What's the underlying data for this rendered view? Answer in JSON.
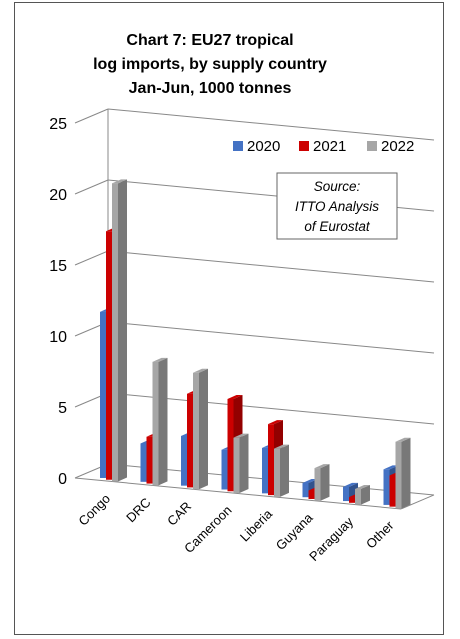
{
  "chart_data": {
    "type": "bar",
    "title_lines": [
      "Chart 7: EU27 tropical",
      "log imports, by supply country",
      "Jan-Jun, 1000 tonnes"
    ],
    "categories": [
      "Congo",
      "DRC",
      "CAR",
      "Cameroon",
      "Liberia",
      "Guyana",
      "Paraguay",
      "Other"
    ],
    "series": [
      {
        "name": "2020",
        "values": [
          11.7,
          2.7,
          3.5,
          2.8,
          3.2,
          1.0,
          1.0,
          2.5
        ]
      },
      {
        "name": "2021",
        "values": [
          17.5,
          3.3,
          6.6,
          6.5,
          5.0,
          0.6,
          0.4,
          2.2
        ]
      },
      {
        "name": "2022",
        "values": [
          21.0,
          8.7,
          8.2,
          3.9,
          3.4,
          2.3,
          1.1,
          4.7
        ]
      }
    ],
    "yticks": [
      0,
      5,
      10,
      15,
      20,
      25
    ],
    "ylim": [
      0,
      25
    ],
    "xlabel": "",
    "ylabel": "",
    "grid": true,
    "legend": "top-right",
    "colors": [
      "#4472C4",
      "#CC0000",
      "#A6A6A6"
    ],
    "annotation_lines": [
      "Source:",
      "ITTO  Analysis",
      "of Eurostat"
    ]
  }
}
